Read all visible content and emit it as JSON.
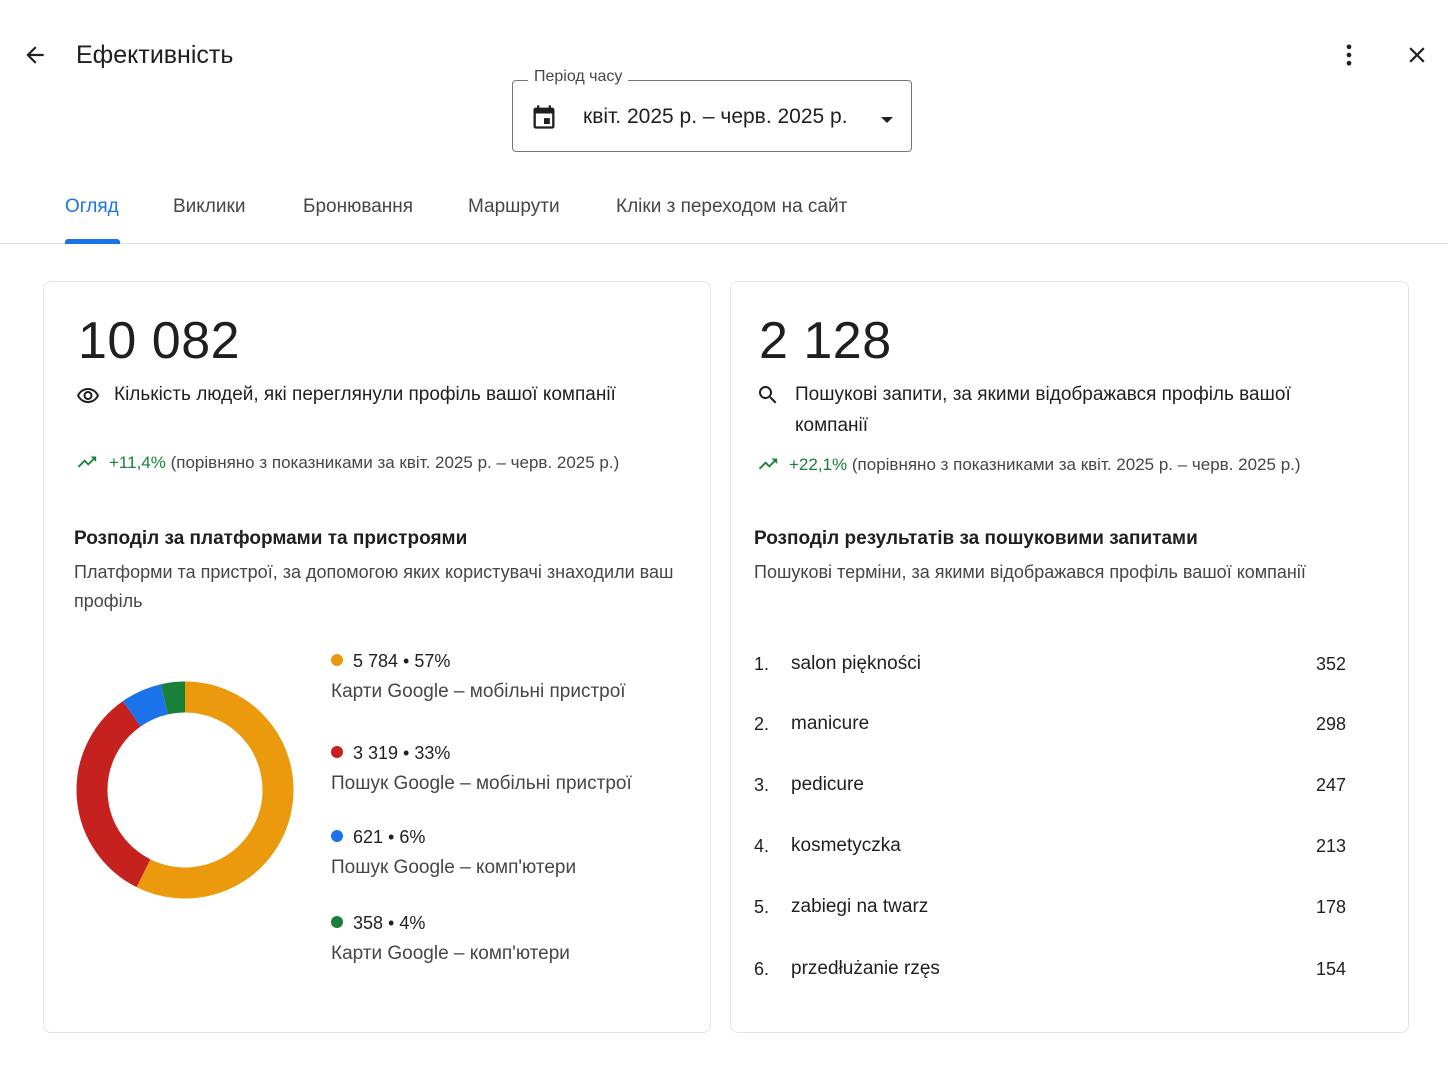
{
  "header": {
    "title": "Ефективність",
    "icons": [
      "arrow-back-icon",
      "more-vert-icon",
      "close-icon"
    ]
  },
  "period": {
    "legend": "Період часу",
    "value": "квіт. 2025 р. – черв. 2025 р."
  },
  "tabs": [
    {
      "label": "Огляд",
      "active": true
    },
    {
      "label": "Виклики",
      "active": false
    },
    {
      "label": "Бронювання",
      "active": false
    },
    {
      "label": "Маршрути",
      "active": false
    },
    {
      "label": "Кліки з переходом на сайт",
      "active": false
    }
  ],
  "views": {
    "total": "10 082",
    "label": "Кількість людей, які переглянули профіль вашої компанії",
    "change": "+11,4%",
    "change_note": "(порівняно з показниками за квіт. 2025 р. – черв. 2025 р.)"
  },
  "platforms": {
    "title": "Розподіл за платформами та пристроями",
    "desc": "Платформи та пристрої, за допомогою яких користувачі знаходили ваш профіль",
    "items": [
      {
        "value": "5 784",
        "percent": "57%",
        "label": "Карти Google – мобільні пристрої",
        "color": "#ea9a0c",
        "share": 5784
      },
      {
        "value": "3 319",
        "percent": "33%",
        "label": "Пошук Google – мобільні пристрої",
        "color": "#c5221f",
        "share": 3319
      },
      {
        "value": "621",
        "percent": "6%",
        "label": "Пошук Google – комп'ютери",
        "color": "#1a73e8",
        "share": 621
      },
      {
        "value": "358",
        "percent": "4%",
        "label": "Карти Google – комп'ютери",
        "color": "#188038",
        "share": 358
      }
    ]
  },
  "searches": {
    "total": "2 128",
    "label_line1": "Пошукові запити, за якими відображався профіль вашої",
    "label_line2": "компанії",
    "change": "+22,1%",
    "change_note": "(порівняно з показниками за квіт. 2025 р. – черв. 2025 р.)",
    "title": "Розподіл результатів за пошуковими запитами",
    "desc": "Пошукові терміни, за якими відображався профіль вашої компанії",
    "queries": [
      {
        "num": "1.",
        "term": "salon piękności",
        "count": "352"
      },
      {
        "num": "2.",
        "term": "manicure",
        "count": "298"
      },
      {
        "num": "3.",
        "term": "pedicure",
        "count": "247"
      },
      {
        "num": "4.",
        "term": "kosmetyczka",
        "count": "213"
      },
      {
        "num": "5.",
        "term": "zabiegi na twarz",
        "count": "178"
      },
      {
        "num": "6.",
        "term": "przedłużanie rzęs",
        "count": "154"
      }
    ]
  },
  "colors": {
    "accent": "#1a73e8",
    "trend_up": "#188038"
  }
}
